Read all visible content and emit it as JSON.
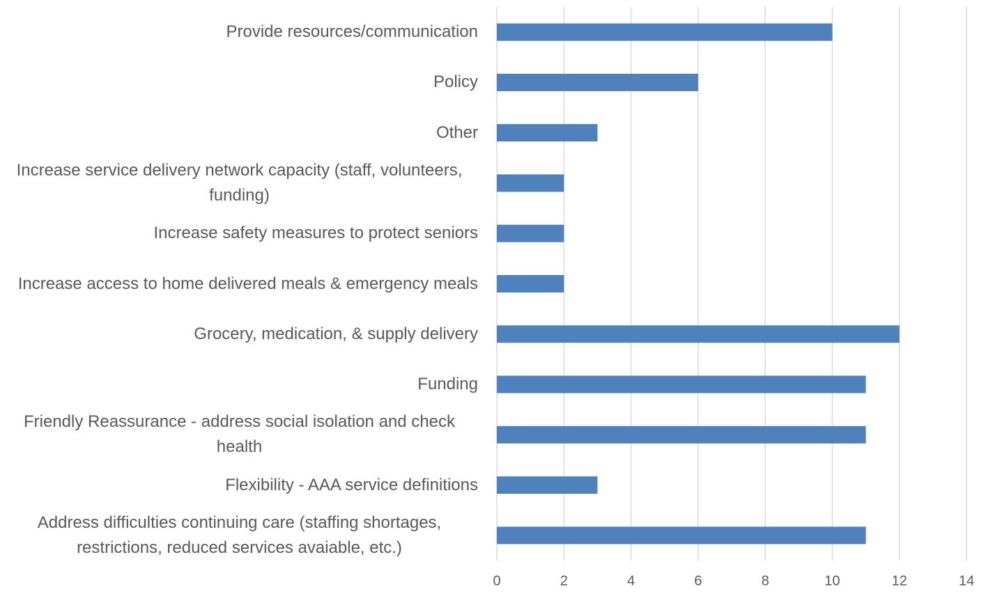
{
  "chart_data": {
    "type": "barh",
    "categories": [
      "Provide resources/communication",
      "Policy",
      "Other",
      "Increase service delivery network capacity (staff, volunteers, funding)",
      "Increase safety measures to protect seniors",
      "Increase access to home delivered meals & emergency meals",
      "Grocery, medication, & supply delivery",
      "Funding",
      "Friendly Reassurance - address social isolation and check health",
      "Flexibility - AAA service definitions",
      "Address difficulties continuing care (staffing shortages, restrictions, reduced services avaiable, etc.)"
    ],
    "values": [
      10,
      6,
      3,
      2,
      2,
      2,
      12,
      11,
      11,
      3,
      11
    ],
    "color": "#4f81bd",
    "xlim": [
      0,
      14
    ],
    "xticks": [
      0,
      2,
      4,
      6,
      8,
      10,
      12,
      14
    ],
    "grid": true
  }
}
